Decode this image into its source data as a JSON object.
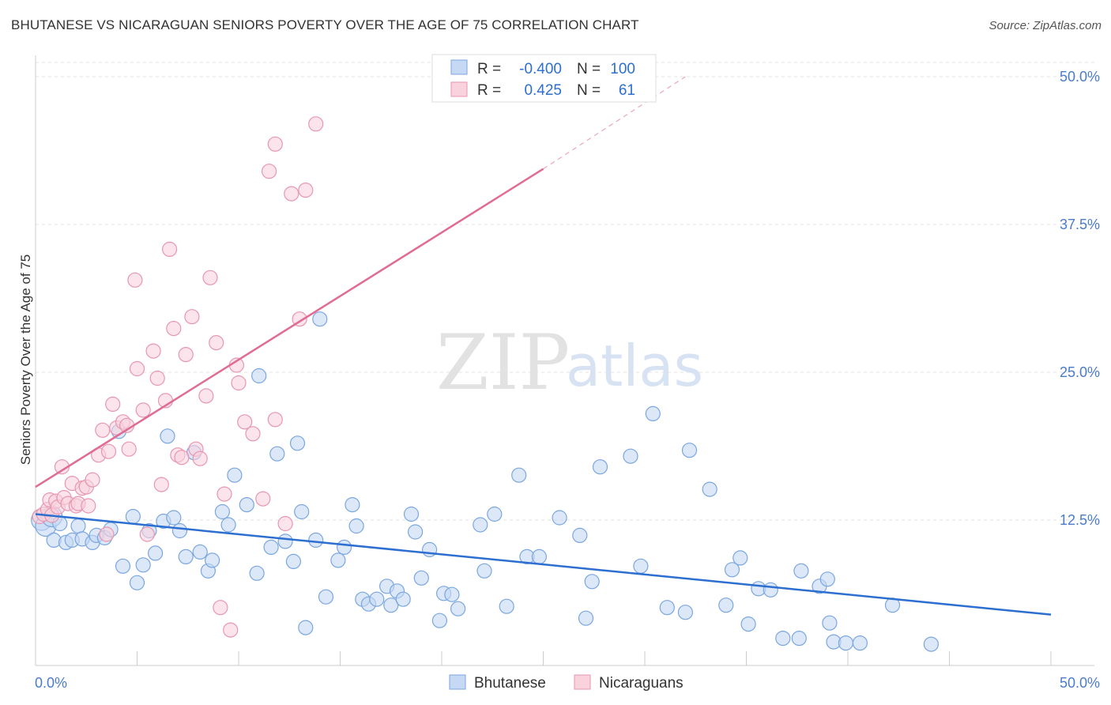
{
  "header": {
    "title": "BHUTANESE VS NICARAGUAN SENIORS POVERTY OVER THE AGE OF 75 CORRELATION CHART",
    "source": "Source: ZipAtlas.com"
  },
  "watermark": {
    "zip": "ZIP",
    "atlas": "atlas"
  },
  "legend_box": {
    "r_label": "R =",
    "n_label": "N =",
    "rows": [
      {
        "series": "Bhutanese",
        "r": "-0.400",
        "n": "100",
        "color": "#a9c8f0",
        "stroke": "#7aa6e0"
      },
      {
        "series": "Nicaraguans",
        "r": "0.425",
        "n": "61",
        "color": "#f7c3d2",
        "stroke": "#e896b0"
      }
    ]
  },
  "chart_data": {
    "type": "scatter",
    "title": "BHUTANESE VS NICARAGUAN SENIORS POVERTY OVER THE AGE OF 75 CORRELATION CHART",
    "xlabel": "",
    "ylabel": "Seniors Poverty Over the Age of 75",
    "xlim": [
      0,
      50
    ],
    "ylim": [
      0,
      50
    ],
    "x_tick_labels": [
      "0.0%",
      "50.0%"
    ],
    "y_tick_labels": [
      "12.5%",
      "25.0%",
      "37.5%",
      "50.0%"
    ],
    "y_ticks": [
      12.5,
      25.0,
      37.5,
      50.0
    ],
    "grid": true,
    "legend_position": "bottom",
    "series": [
      {
        "name": "Bhutanese",
        "color": "#7aa6e0",
        "fill": "#c5d9f4",
        "trend": {
          "x": [
            0,
            50
          ],
          "y": [
            13.0,
            4.5
          ],
          "color": "#2c6fd0"
        },
        "points": [
          [
            0.3,
            12.5
          ],
          [
            0.5,
            12.0
          ],
          [
            0.8,
            12.8
          ],
          [
            0.9,
            10.8
          ],
          [
            1.2,
            12.2
          ],
          [
            1.5,
            10.6
          ],
          [
            1.8,
            10.8
          ],
          [
            2.1,
            12.0
          ],
          [
            2.3,
            10.9
          ],
          [
            2.8,
            10.6
          ],
          [
            3.0,
            11.2
          ],
          [
            3.4,
            11.0
          ],
          [
            3.7,
            11.7
          ],
          [
            4.1,
            20.0
          ],
          [
            4.3,
            8.6
          ],
          [
            4.8,
            12.8
          ],
          [
            5.0,
            7.2
          ],
          [
            5.3,
            8.7
          ],
          [
            5.6,
            11.6
          ],
          [
            5.9,
            9.7
          ],
          [
            6.3,
            12.4
          ],
          [
            6.5,
            19.6
          ],
          [
            6.8,
            12.7
          ],
          [
            7.1,
            11.6
          ],
          [
            7.4,
            9.4
          ],
          [
            7.8,
            18.2
          ],
          [
            8.1,
            9.8
          ],
          [
            8.5,
            8.2
          ],
          [
            8.7,
            9.1
          ],
          [
            9.2,
            13.2
          ],
          [
            9.5,
            12.1
          ],
          [
            9.8,
            16.3
          ],
          [
            10.4,
            13.8
          ],
          [
            10.9,
            8.0
          ],
          [
            11.0,
            24.7
          ],
          [
            11.6,
            10.2
          ],
          [
            11.9,
            18.1
          ],
          [
            12.3,
            10.7
          ],
          [
            12.7,
            9.0
          ],
          [
            12.9,
            19.0
          ],
          [
            13.1,
            13.2
          ],
          [
            13.3,
            3.4
          ],
          [
            13.8,
            10.8
          ],
          [
            14.0,
            29.5
          ],
          [
            14.3,
            6.0
          ],
          [
            14.9,
            9.1
          ],
          [
            15.2,
            10.2
          ],
          [
            15.6,
            13.8
          ],
          [
            15.8,
            12.0
          ],
          [
            16.1,
            5.8
          ],
          [
            16.4,
            5.4
          ],
          [
            16.8,
            5.8
          ],
          [
            17.3,
            6.9
          ],
          [
            17.5,
            5.3
          ],
          [
            17.8,
            6.5
          ],
          [
            18.1,
            5.8
          ],
          [
            18.5,
            13.0
          ],
          [
            18.7,
            11.5
          ],
          [
            19.0,
            7.6
          ],
          [
            19.4,
            10.0
          ],
          [
            19.9,
            4.0
          ],
          [
            20.1,
            6.3
          ],
          [
            20.5,
            6.2
          ],
          [
            20.8,
            5.0
          ],
          [
            21.9,
            12.1
          ],
          [
            22.1,
            8.2
          ],
          [
            22.6,
            13.0
          ],
          [
            23.2,
            5.2
          ],
          [
            23.8,
            16.3
          ],
          [
            24.2,
            9.4
          ],
          [
            24.8,
            9.4
          ],
          [
            25.8,
            12.7
          ],
          [
            26.8,
            11.2
          ],
          [
            27.1,
            4.2
          ],
          [
            27.4,
            7.3
          ],
          [
            27.8,
            17.0
          ],
          [
            29.3,
            17.9
          ],
          [
            29.8,
            8.6
          ],
          [
            30.4,
            21.5
          ],
          [
            31.1,
            5.1
          ],
          [
            32.0,
            4.7
          ],
          [
            32.2,
            18.4
          ],
          [
            33.2,
            15.1
          ],
          [
            34.0,
            5.3
          ],
          [
            34.3,
            8.3
          ],
          [
            34.7,
            9.3
          ],
          [
            35.1,
            3.7
          ],
          [
            35.6,
            6.7
          ],
          [
            36.2,
            6.6
          ],
          [
            36.8,
            2.5
          ],
          [
            37.6,
            2.5
          ],
          [
            37.7,
            8.2
          ],
          [
            38.6,
            6.9
          ],
          [
            39.0,
            7.5
          ],
          [
            39.1,
            3.8
          ],
          [
            39.3,
            2.2
          ],
          [
            39.9,
            2.1
          ],
          [
            40.6,
            2.1
          ],
          [
            42.2,
            5.3
          ],
          [
            44.1,
            2.0
          ]
        ]
      },
      {
        "name": "Nicaraguans",
        "color": "#e896b0",
        "fill": "#f9d2de",
        "trend": {
          "x": [
            0,
            25
          ],
          "y": [
            15.3,
            42.2
          ],
          "dash_to": [
            32,
            50.0
          ],
          "color": "#e06b93"
        },
        "points": [
          [
            0.2,
            12.8
          ],
          [
            0.4,
            13.0
          ],
          [
            0.6,
            13.4
          ],
          [
            0.7,
            14.2
          ],
          [
            0.8,
            12.9
          ],
          [
            1.0,
            14.1
          ],
          [
            1.1,
            13.6
          ],
          [
            1.3,
            17.0
          ],
          [
            1.4,
            14.4
          ],
          [
            1.6,
            13.9
          ],
          [
            1.8,
            15.6
          ],
          [
            2.0,
            13.7
          ],
          [
            2.1,
            13.9
          ],
          [
            2.3,
            15.2
          ],
          [
            2.5,
            15.3
          ],
          [
            2.6,
            13.7
          ],
          [
            2.8,
            15.9
          ],
          [
            3.1,
            18.0
          ],
          [
            3.3,
            20.1
          ],
          [
            3.5,
            11.3
          ],
          [
            3.6,
            18.3
          ],
          [
            3.8,
            22.3
          ],
          [
            4.0,
            20.3
          ],
          [
            4.3,
            20.8
          ],
          [
            4.5,
            20.5
          ],
          [
            4.6,
            18.5
          ],
          [
            4.9,
            32.8
          ],
          [
            5.0,
            25.3
          ],
          [
            5.3,
            21.8
          ],
          [
            5.5,
            11.3
          ],
          [
            5.8,
            26.8
          ],
          [
            6.0,
            24.5
          ],
          [
            6.2,
            15.5
          ],
          [
            6.4,
            22.6
          ],
          [
            6.6,
            35.4
          ],
          [
            6.8,
            28.7
          ],
          [
            7.0,
            18.0
          ],
          [
            7.2,
            17.8
          ],
          [
            7.4,
            26.5
          ],
          [
            7.7,
            29.7
          ],
          [
            7.9,
            18.5
          ],
          [
            8.1,
            17.7
          ],
          [
            8.4,
            23.0
          ],
          [
            8.6,
            33.0
          ],
          [
            8.9,
            27.5
          ],
          [
            9.1,
            5.1
          ],
          [
            9.3,
            14.7
          ],
          [
            9.6,
            3.2
          ],
          [
            9.9,
            25.6
          ],
          [
            10.0,
            24.1
          ],
          [
            10.3,
            20.8
          ],
          [
            10.7,
            19.8
          ],
          [
            11.2,
            14.3
          ],
          [
            11.5,
            42.0
          ],
          [
            11.8,
            21.0
          ],
          [
            12.3,
            12.2
          ],
          [
            12.6,
            40.1
          ],
          [
            13.0,
            29.5
          ],
          [
            13.3,
            40.4
          ],
          [
            13.8,
            46.0
          ],
          [
            11.8,
            44.3
          ]
        ]
      }
    ]
  }
}
